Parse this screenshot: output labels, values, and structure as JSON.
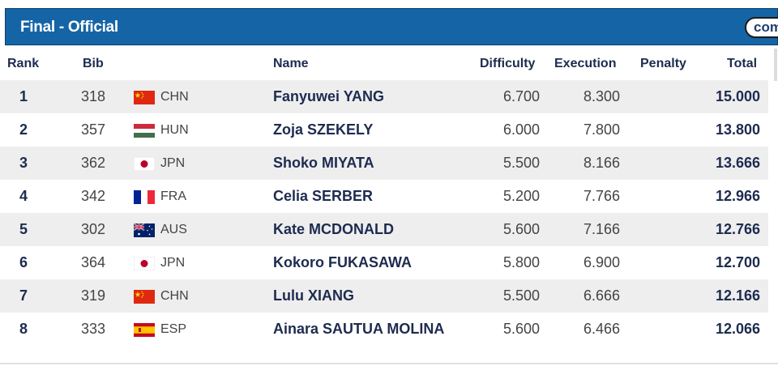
{
  "header": {
    "title": "Final - Official",
    "pill_text": "com"
  },
  "columns": {
    "rank": "Rank",
    "bib": "Bib",
    "name": "Name",
    "difficulty": "Difficulty",
    "execution": "Execution",
    "penalty": "Penalty",
    "total": "Total"
  },
  "rows": [
    {
      "rank": "1",
      "bib": "318",
      "noc": "CHN",
      "flag": "china-flag-icon",
      "name": "Fanyuwei YANG",
      "difficulty": "6.700",
      "execution": "8.300",
      "penalty": "",
      "total": "15.000"
    },
    {
      "rank": "2",
      "bib": "357",
      "noc": "HUN",
      "flag": "hungary-flag-icon",
      "name": "Zoja SZEKELY",
      "difficulty": "6.000",
      "execution": "7.800",
      "penalty": "",
      "total": "13.800"
    },
    {
      "rank": "3",
      "bib": "362",
      "noc": "JPN",
      "flag": "japan-flag-icon",
      "name": "Shoko MIYATA",
      "difficulty": "5.500",
      "execution": "8.166",
      "penalty": "",
      "total": "13.666"
    },
    {
      "rank": "4",
      "bib": "342",
      "noc": "FRA",
      "flag": "france-flag-icon",
      "name": "Celia SERBER",
      "difficulty": "5.200",
      "execution": "7.766",
      "penalty": "",
      "total": "12.966"
    },
    {
      "rank": "5",
      "bib": "302",
      "noc": "AUS",
      "flag": "australia-flag-icon",
      "name": "Kate MCDONALD",
      "difficulty": "5.600",
      "execution": "7.166",
      "penalty": "",
      "total": "12.766"
    },
    {
      "rank": "6",
      "bib": "364",
      "noc": "JPN",
      "flag": "japan-flag-icon",
      "name": "Kokoro FUKASAWA",
      "difficulty": "5.800",
      "execution": "6.900",
      "penalty": "",
      "total": "12.700"
    },
    {
      "rank": "7",
      "bib": "319",
      "noc": "CHN",
      "flag": "china-flag-icon",
      "name": "Lulu XIANG",
      "difficulty": "5.500",
      "execution": "6.666",
      "penalty": "",
      "total": "12.166"
    },
    {
      "rank": "8",
      "bib": "333",
      "noc": "ESP",
      "flag": "spain-flag-icon",
      "name": "Ainara SAUTUA MOLINA",
      "difficulty": "5.600",
      "execution": "6.466",
      "penalty": "",
      "total": "12.066"
    }
  ],
  "colors": {
    "header_bg": "#1565a6",
    "text_navy": "#1d2b4f",
    "row_alt": "#eeeeee"
  }
}
